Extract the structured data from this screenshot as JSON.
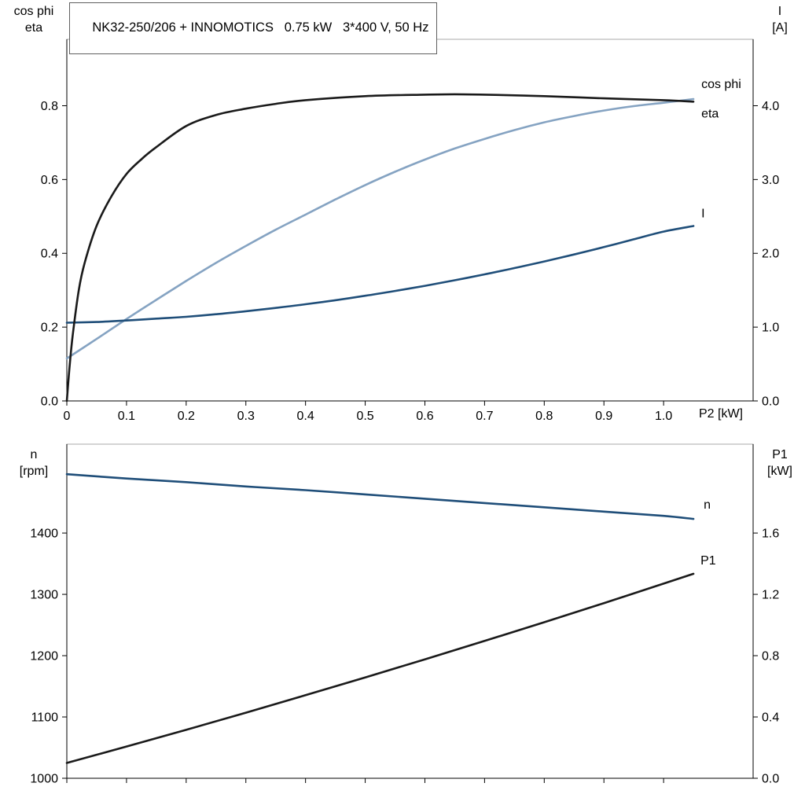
{
  "colors": {
    "background": "#ffffff",
    "text": "#000000",
    "axis": "#000000",
    "frame": "#a8a8a8",
    "black_curve": "#1a1a1a",
    "light_blue_curve": "#85a3c2",
    "dark_blue_curve": "#1f4e79"
  },
  "chart_data": [
    {
      "name": "motor-electrical-chart",
      "type": "line",
      "title": "NK32-250/206 + INNOMOTICS   0.75 kW   3*400 V, 50 Hz",
      "x_axis": {
        "label": "P2 [kW]",
        "min": 0,
        "max": 1.15,
        "ticks": [
          {
            "v": 0,
            "t": "0"
          },
          {
            "v": 0.1,
            "t": "0.1"
          },
          {
            "v": 0.2,
            "t": "0.2"
          },
          {
            "v": 0.3,
            "t": "0.3"
          },
          {
            "v": 0.4,
            "t": "0.4"
          },
          {
            "v": 0.5,
            "t": "0.5"
          },
          {
            "v": 0.6,
            "t": "0.6"
          },
          {
            "v": 0.7,
            "t": "0.7"
          },
          {
            "v": 0.8,
            "t": "0.8"
          },
          {
            "v": 0.9,
            "t": "0.9"
          },
          {
            "v": 1.0,
            "t": "1.0"
          }
        ]
      },
      "y_left": {
        "title": [
          "cos phi",
          "eta"
        ],
        "min": 0,
        "max": 0.98,
        "ticks": [
          {
            "v": 0,
            "t": "0.0"
          },
          {
            "v": 0.2,
            "t": "0.2"
          },
          {
            "v": 0.4,
            "t": "0.4"
          },
          {
            "v": 0.6,
            "t": "0.6"
          },
          {
            "v": 0.8,
            "t": "0.8"
          }
        ]
      },
      "y_right": {
        "title": [
          "I",
          "[A]"
        ],
        "min": 0,
        "max": 4.9,
        "ticks": [
          {
            "v": 0,
            "t": "0.0"
          },
          {
            "v": 1,
            "t": "1.0"
          },
          {
            "v": 2,
            "t": "2.0"
          },
          {
            "v": 3,
            "t": "3.0"
          },
          {
            "v": 4,
            "t": "4.0"
          }
        ]
      },
      "series": [
        {
          "name": "cos-phi",
          "label": "cos phi",
          "axis": "left",
          "color": "#85a3c2",
          "label_offset": [
            10,
            -14
          ],
          "x": [
            0,
            0.05,
            0.1,
            0.15,
            0.2,
            0.25,
            0.3,
            0.35,
            0.4,
            0.45,
            0.5,
            0.55,
            0.6,
            0.65,
            0.7,
            0.75,
            0.8,
            0.85,
            0.9,
            0.95,
            1.0,
            1.05
          ],
          "y": [
            0.115,
            0.168,
            0.222,
            0.274,
            0.325,
            0.374,
            0.42,
            0.464,
            0.505,
            0.546,
            0.585,
            0.621,
            0.654,
            0.684,
            0.71,
            0.734,
            0.755,
            0.772,
            0.787,
            0.799,
            0.808,
            0.818
          ]
        },
        {
          "name": "current",
          "label": "I",
          "axis": "right",
          "color": "#1f4e79",
          "label_offset": [
            10,
            -11
          ],
          "x": [
            0,
            0.05,
            0.1,
            0.15,
            0.2,
            0.25,
            0.3,
            0.35,
            0.4,
            0.45,
            0.5,
            0.55,
            0.6,
            0.65,
            0.7,
            0.75,
            0.8,
            0.85,
            0.9,
            0.95,
            1.0,
            1.05
          ],
          "y": [
            1.06,
            1.07,
            1.09,
            1.115,
            1.14,
            1.175,
            1.215,
            1.26,
            1.31,
            1.365,
            1.425,
            1.49,
            1.56,
            1.635,
            1.715,
            1.8,
            1.89,
            1.985,
            2.085,
            2.19,
            2.295,
            2.37
          ]
        },
        {
          "name": "eta",
          "label": "eta",
          "axis": "left",
          "color": "#1a1a1a",
          "label_offset": [
            10,
            20
          ],
          "x": [
            0,
            0.005,
            0.01,
            0.02,
            0.03,
            0.05,
            0.075,
            0.1,
            0.125,
            0.15,
            0.2,
            0.25,
            0.3,
            0.35,
            0.4,
            0.5,
            0.6,
            0.65,
            0.7,
            0.8,
            0.9,
            1.0,
            1.05
          ],
          "y": [
            0,
            0.1,
            0.18,
            0.3,
            0.375,
            0.475,
            0.555,
            0.615,
            0.655,
            0.688,
            0.745,
            0.775,
            0.792,
            0.805,
            0.815,
            0.826,
            0.83,
            0.831,
            0.83,
            0.826,
            0.82,
            0.815,
            0.811
          ]
        }
      ]
    },
    {
      "name": "motor-mechanical-chart",
      "type": "line",
      "x_axis": {
        "min": 0,
        "max": 1.15,
        "ticks": [
          {
            "v": 0
          },
          {
            "v": 0.1
          },
          {
            "v": 0.2
          },
          {
            "v": 0.3
          },
          {
            "v": 0.4
          },
          {
            "v": 0.5
          },
          {
            "v": 0.6
          },
          {
            "v": 0.7
          },
          {
            "v": 0.8
          },
          {
            "v": 0.9
          },
          {
            "v": 1.0
          }
        ]
      },
      "y_left": {
        "title": [
          "n",
          "[rpm]"
        ],
        "min": 1000,
        "max": 1545,
        "ticks": [
          {
            "v": 1000,
            "t": "1000"
          },
          {
            "v": 1100,
            "t": "1100"
          },
          {
            "v": 1200,
            "t": "1200"
          },
          {
            "v": 1300,
            "t": "1300"
          },
          {
            "v": 1400,
            "t": "1400"
          }
        ]
      },
      "y_right": {
        "title": [
          "P1",
          "[kW]"
        ],
        "min": 0,
        "max": 2.18,
        "ticks": [
          {
            "v": 0,
            "t": "0.0"
          },
          {
            "v": 0.4,
            "t": "0.4"
          },
          {
            "v": 0.8,
            "t": "0.8"
          },
          {
            "v": 1.2,
            "t": "1.2"
          },
          {
            "v": 1.6,
            "t": "1.6"
          }
        ]
      },
      "series": [
        {
          "name": "speed",
          "label": "n",
          "axis": "left",
          "color": "#1f4e79",
          "label_offset": [
            13,
            -13
          ],
          "x": [
            0,
            0.1,
            0.2,
            0.3,
            0.4,
            0.5,
            0.6,
            0.7,
            0.8,
            0.9,
            1.0,
            1.05
          ],
          "y": [
            1496,
            1489,
            1483,
            1476,
            1470,
            1463,
            1456,
            1449,
            1442,
            1435,
            1428,
            1423
          ]
        },
        {
          "name": "p1",
          "label": "P1",
          "axis": "right",
          "color": "#1a1a1a",
          "label_offset": [
            9,
            -12
          ],
          "x": [
            0,
            0.1,
            0.2,
            0.3,
            0.4,
            0.5,
            0.6,
            0.7,
            0.8,
            0.9,
            1.0,
            1.05
          ],
          "y": [
            0.1,
            0.207,
            0.316,
            0.428,
            0.542,
            0.658,
            0.776,
            0.896,
            1.018,
            1.143,
            1.27,
            1.334
          ]
        }
      ]
    }
  ]
}
